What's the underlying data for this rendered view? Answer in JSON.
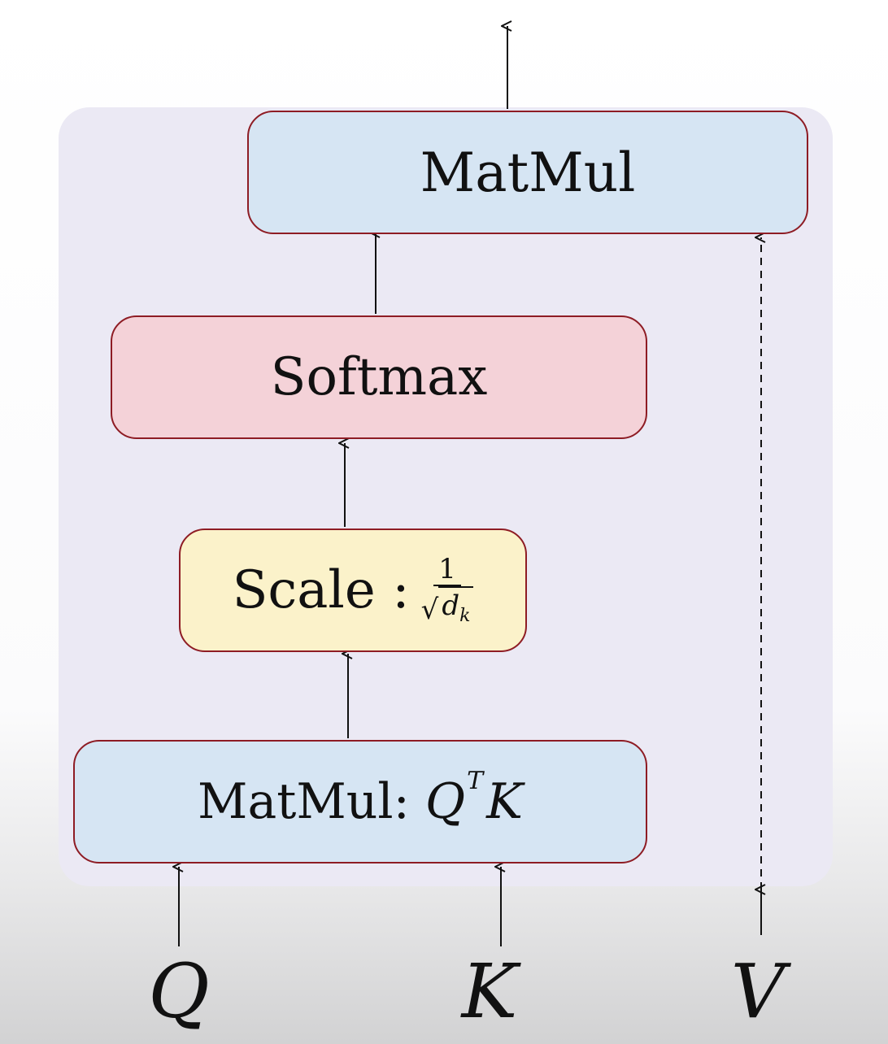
{
  "diagram": {
    "boxes": {
      "matmul_top": "MatMul",
      "softmax": "Softmax",
      "scale": {
        "label": "Scale :",
        "fraction_numerator": "1",
        "sqrt_symbol": "√",
        "radicand": "d",
        "radicand_subscript": "k"
      },
      "matmul_qk": {
        "label": "MatMul:",
        "math_base": "Q",
        "math_superscript": "T",
        "math_rhs": "K"
      }
    },
    "inputs": {
      "q": "Q",
      "k": "K",
      "v": "V"
    },
    "colors": {
      "panel_background": "#ebe9f4",
      "matmul_fill": "#d6e5f3",
      "softmax_fill": "#f4d2d8",
      "scale_fill": "#fbf2ca",
      "box_border": "#8e1c24"
    }
  }
}
